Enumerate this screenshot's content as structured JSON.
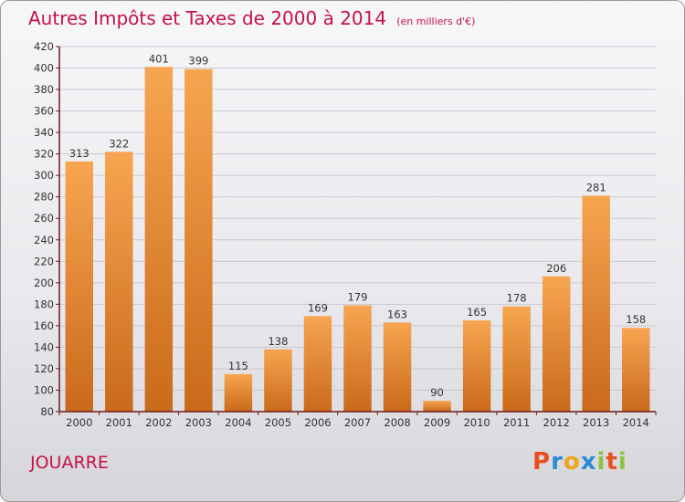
{
  "title": "Autres Impôts et Taxes de 2000 à 2014",
  "subtitle": "(en milliers d'€)",
  "commune": "JOUARRE",
  "logo": {
    "text": "Proxiti",
    "letters": [
      {
        "ch": "P",
        "color": "#e8501f"
      },
      {
        "ch": "r",
        "color": "#2b8bd6"
      },
      {
        "ch": "o",
        "color": "#f0a51c"
      },
      {
        "ch": "x",
        "color": "#2b8bd6"
      },
      {
        "ch": "i",
        "color": "#8bc53f"
      },
      {
        "ch": "t",
        "color": "#e8501f"
      },
      {
        "ch": "i",
        "color": "#8bc53f"
      }
    ]
  },
  "colors": {
    "accent": "#c5114a",
    "bar_top": "#f7a550",
    "bar_bottom": "#c96a1a",
    "grid": "#c8c8d0",
    "axis": "#6e1a1a"
  },
  "chart_data": {
    "type": "bar",
    "categories": [
      "2000",
      "2001",
      "2002",
      "2003",
      "2004",
      "2005",
      "2006",
      "2007",
      "2008",
      "2009",
      "2010",
      "2011",
      "2012",
      "2013",
      "2014"
    ],
    "values": [
      313,
      322,
      401,
      399,
      115,
      138,
      169,
      179,
      163,
      90,
      165,
      178,
      206,
      281,
      158
    ],
    "ylim": [
      80,
      420
    ],
    "yticks": [
      80,
      100,
      120,
      140,
      160,
      180,
      200,
      220,
      240,
      260,
      280,
      300,
      320,
      340,
      360,
      380,
      400,
      420
    ],
    "grid": true,
    "data_labels": true
  }
}
